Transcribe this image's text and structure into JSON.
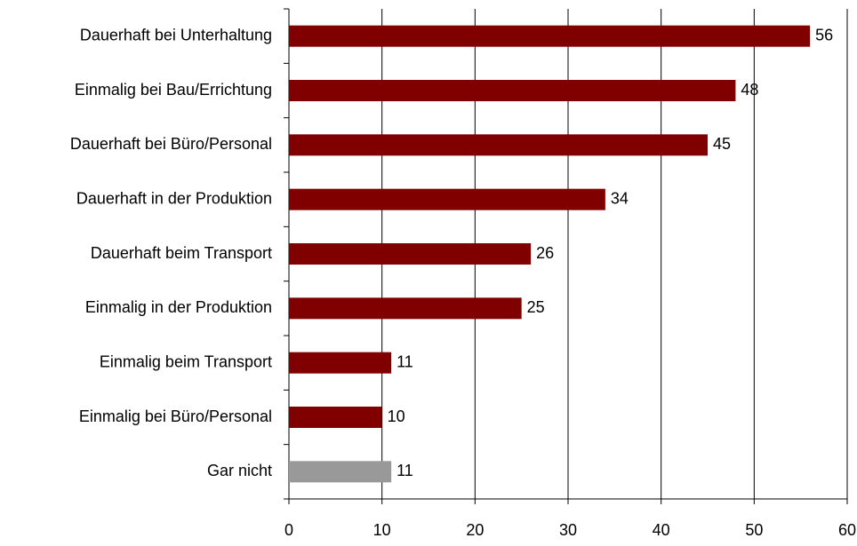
{
  "chart_data": {
    "type": "barh",
    "categories": [
      "Dauerhaft bei Unterhaltung",
      "Einmalig bei Bau/Errichtung",
      "Dauerhaft bei Büro/Personal",
      "Dauerhaft in der Produktion",
      "Dauerhaft beim Transport",
      "Einmalig in der Produktion",
      "Einmalig beim Transport",
      "Einmalig bei Büro/Personal",
      "Gar nicht"
    ],
    "values": [
      56,
      48,
      45,
      34,
      26,
      25,
      11,
      10,
      11
    ],
    "colors": [
      "#800000",
      "#800000",
      "#800000",
      "#800000",
      "#800000",
      "#800000",
      "#800000",
      "#800000",
      "#999999"
    ],
    "xlim": [
      0,
      60
    ],
    "xticks": [
      0,
      10,
      20,
      30,
      40,
      50,
      60
    ],
    "grid": true
  }
}
